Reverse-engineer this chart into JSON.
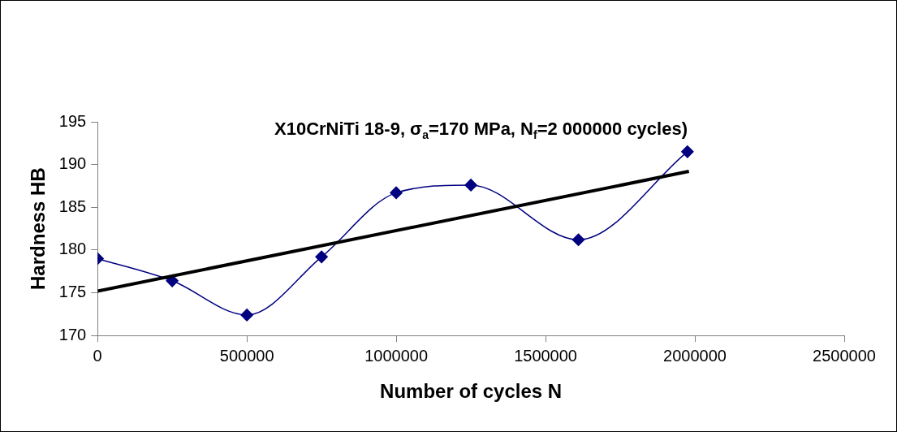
{
  "chart_data": {
    "type": "line",
    "title": "X10CrNiTi 18-9, σ$_{a}$=170 MPa, N$_{f}$=2 000000 cycles)",
    "xlabel": "Number of cycles N",
    "ylabel": "Hardness HB",
    "x": [
      0,
      250000,
      500000,
      750000,
      1000000,
      1250000,
      1610000,
      1975000
    ],
    "series": [
      {
        "color": "#000080",
        "values": [
          179.0,
          176.4,
          172.4,
          179.2,
          186.7,
          187.6,
          181.2,
          191.5
        ]
      },
      {
        "type": "line",
        "color": "#000000",
        "marker": "none",
        "x": [
          0,
          1980000
        ],
        "values": [
          175.2,
          189.2
        ]
      }
    ],
    "xlim": [
      0,
      2500000
    ],
    "xticks": [
      0,
      500000,
      1000000,
      1500000,
      2000000,
      2500000
    ],
    "ylim": [
      170,
      195
    ],
    "yticks": [
      170,
      175,
      180,
      185,
      190,
      195
    ],
    "grid": false,
    "legend": false,
    "marker": "diamond",
    "line_style": "solid"
  }
}
